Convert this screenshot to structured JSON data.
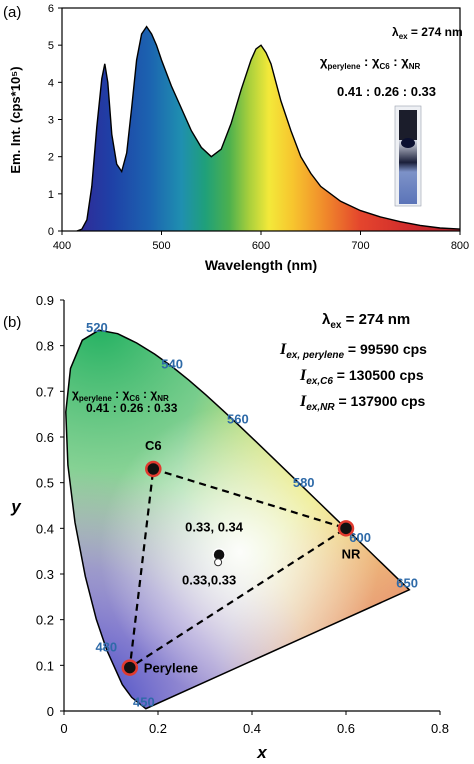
{
  "panel_labels": {
    "a": "(a)",
    "b": "(b)"
  },
  "colors": {
    "axis": "#000000",
    "wavelength_label": "#2e6aa8",
    "point_fill": "#111111",
    "point_ring": "#e03a2f"
  },
  "chart_data": [
    {
      "type": "area",
      "panel": "(a)",
      "xlabel": "Wavelength (nm)",
      "ylabel": "Em. Int. (cps*10⁵)",
      "xlim": [
        400,
        800
      ],
      "ylim": [
        0,
        6
      ],
      "xticks": [
        400,
        500,
        600,
        700,
        800
      ],
      "yticks": [
        0,
        1,
        2,
        3,
        4,
        5,
        6
      ],
      "grid": false,
      "fill": "spectral gradient",
      "x": [
        415,
        420,
        425,
        430,
        435,
        440,
        443,
        446,
        450,
        455,
        460,
        465,
        470,
        475,
        480,
        485,
        490,
        495,
        500,
        510,
        520,
        530,
        540,
        550,
        560,
        570,
        580,
        590,
        595,
        600,
        605,
        610,
        620,
        630,
        640,
        650,
        660,
        680,
        700,
        720,
        740,
        760,
        780,
        800
      ],
      "y": [
        0.0,
        0.05,
        0.3,
        1.2,
        2.8,
        4.1,
        4.5,
        4.0,
        2.6,
        1.8,
        1.6,
        2.1,
        3.3,
        4.6,
        5.3,
        5.5,
        5.3,
        5.0,
        4.6,
        3.9,
        3.3,
        2.7,
        2.25,
        2.0,
        2.2,
        2.9,
        3.8,
        4.6,
        4.9,
        5.0,
        4.8,
        4.5,
        3.5,
        2.7,
        2.0,
        1.55,
        1.2,
        0.8,
        0.55,
        0.38,
        0.25,
        0.15,
        0.08,
        0.05
      ],
      "annotations": {
        "lambda_ex": "λ",
        "lambda_ex_sub": "ex",
        "lambda_ex_value": " = 274 nm",
        "chi": "χ",
        "sub_perylene": "perylene",
        "sub_c6": "C6",
        "sub_nr": "NR",
        "sep": " : ",
        "ratio": "0.41 : 0.26 : 0.33"
      }
    },
    {
      "type": "scatter",
      "panel": "(b)",
      "xlabel": "x",
      "ylabel": "y",
      "xlim": [
        0,
        0.8
      ],
      "ylim": [
        0,
        0.9
      ],
      "xticks": [
        "0",
        "0.2",
        "0.4",
        "0.6",
        "0.8"
      ],
      "yticks": [
        "0",
        "0.1",
        "0.2",
        "0.3",
        "0.4",
        "0.5",
        "0.6",
        "0.7",
        "0.8",
        "0.9"
      ],
      "grid": false,
      "points": [
        {
          "label": "C6",
          "x": 0.19,
          "y": 0.53
        },
        {
          "label": "NR",
          "x": 0.6,
          "y": 0.4
        },
        {
          "label": "Perylene",
          "x": 0.14,
          "y": 0.095
        },
        {
          "label": "0.33, 0.34",
          "x": 0.33,
          "y": 0.34
        },
        {
          "label": "0.33,0.33",
          "x": 0.33,
          "y": 0.33
        }
      ],
      "wavelength_labels": [
        {
          "label": "450",
          "x": 0.17,
          "y": 0.01
        },
        {
          "label": "480",
          "x": 0.09,
          "y": 0.13
        },
        {
          "label": "520",
          "x": 0.07,
          "y": 0.83
        },
        {
          "label": "540",
          "x": 0.23,
          "y": 0.75
        },
        {
          "label": "560",
          "x": 0.37,
          "y": 0.63
        },
        {
          "label": "580",
          "x": 0.51,
          "y": 0.49
        },
        {
          "label": "600",
          "x": 0.63,
          "y": 0.37
        },
        {
          "label": "650",
          "x": 0.73,
          "y": 0.27
        }
      ],
      "annotations": {
        "lambda": "λ",
        "lambda_sub": "ex",
        "lambda_value": " = 274 nm",
        "i": "I",
        "i1_sub": "ex, perylene",
        "i1_value": " = 99590 cps",
        "i2_sub": "ex,C6",
        "i2_value": " = 130500 cps",
        "i3_sub": "ex,NR",
        "i3_value": " = 137900 cps",
        "chi": "χ",
        "sub_perylene": "perylene",
        "sub_c6": "C6",
        "sub_nr": "NR",
        "sep": " : ",
        "ratio": "0.41 : 0.26 : 0.33"
      }
    }
  ]
}
